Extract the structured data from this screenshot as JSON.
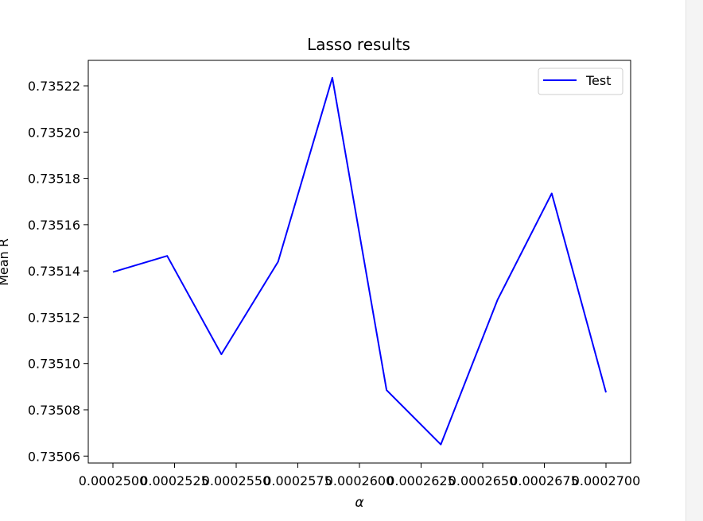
{
  "chart_data": {
    "type": "line",
    "title": "Lasso results",
    "xlabel": "α",
    "ylabel": "Mean R",
    "xlim": [
      0.000249,
      0.000271
    ],
    "ylim": [
      0.735057,
      0.735231
    ],
    "grid": false,
    "legend_placement": "top-right",
    "x_ticks": [
      0.00025,
      0.0002525,
      0.000255,
      0.0002575,
      0.00026,
      0.0002625,
      0.000265,
      0.0002675,
      0.00027
    ],
    "x_tick_labels": [
      "0.0002500",
      "0.0002525",
      "0.0002550",
      "0.0002575",
      "0.0002600",
      "0.0002625",
      "0.0002650",
      "0.0002675",
      "0.0002700"
    ],
    "y_ticks": [
      0.73506,
      0.73508,
      0.7351,
      0.73512,
      0.73514,
      0.73516,
      0.73518,
      0.7352,
      0.73522
    ],
    "y_tick_labels": [
      "0.73506",
      "0.73508",
      "0.73510",
      "0.73512",
      "0.73514",
      "0.73516",
      "0.73518",
      "0.73520",
      "0.73522"
    ],
    "series": [
      {
        "name": "Test",
        "color": "#0000ff",
        "x": [
          0.00025,
          0.0002522,
          0.0002544,
          0.0002567,
          0.0002589,
          0.0002611,
          0.0002633,
          0.0002656,
          0.0002678,
          0.00027
        ],
        "y": [
          0.7351395,
          0.7351465,
          0.735104,
          0.735144,
          0.7352235,
          0.7350885,
          0.735065,
          0.7351275,
          0.7351735,
          0.7350875
        ]
      }
    ]
  }
}
